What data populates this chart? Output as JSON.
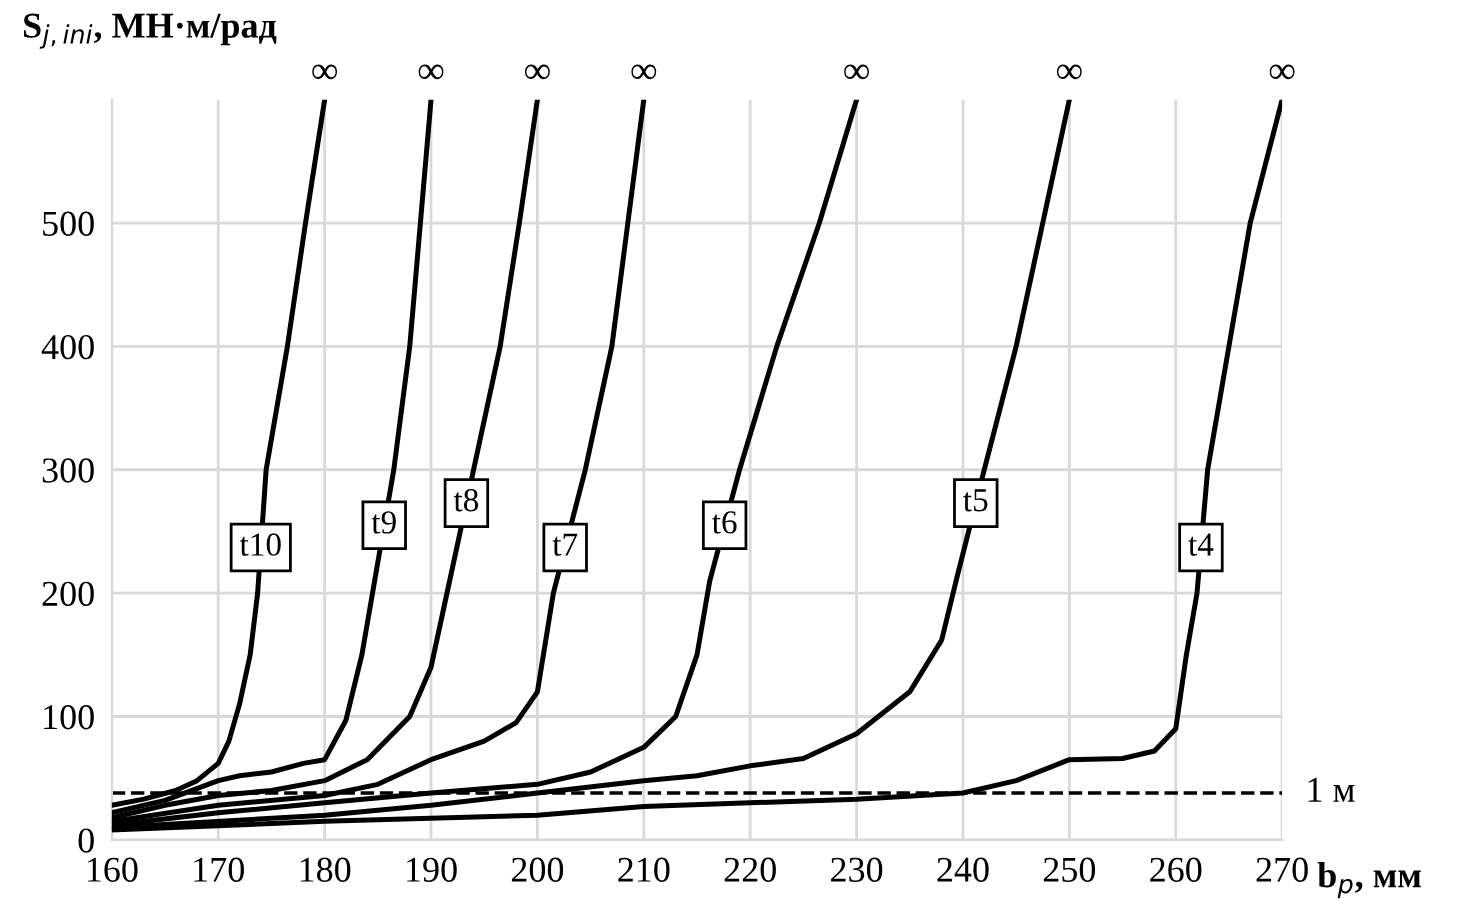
{
  "chart_data": {
    "type": "line",
    "xlabel": "b$_{p}$, мм",
    "ylabel": "S$_{j,ini}$, МН·м/рад",
    "xlim": [
      160,
      270
    ],
    "xticks": [
      160,
      170,
      180,
      190,
      200,
      210,
      220,
      230,
      240,
      250,
      260,
      270
    ],
    "ylim": [
      0,
      600
    ],
    "yticks": [
      0,
      100,
      200,
      300,
      400,
      500
    ],
    "grid": true,
    "marker": "none",
    "line_style": "solid",
    "series": [
      {
        "name": "t10",
        "color": "#000000",
        "x": [
          160,
          163,
          166,
          168,
          170,
          171,
          172,
          173,
          173.7,
          174.5,
          176.5,
          178.2,
          180
        ],
        "values": [
          28,
          33,
          40,
          48,
          62,
          80,
          110,
          150,
          200,
          300,
          400,
          500,
          600
        ]
      },
      {
        "name": "t9",
        "color": "#000000",
        "x": [
          160,
          165,
          170,
          172,
          175,
          178,
          180,
          182,
          183.5,
          184.5,
          186.5,
          188,
          189,
          190
        ],
        "values": [
          22,
          32,
          48,
          52,
          55,
          62,
          65,
          97,
          150,
          200,
          300,
          400,
          500,
          600
        ]
      },
      {
        "name": "t8",
        "color": "#000000",
        "x": [
          160,
          165,
          170,
          175,
          180,
          184,
          188,
          190,
          191.5,
          194,
          196.5,
          198.3,
          200
        ],
        "values": [
          18,
          28,
          36,
          40,
          48,
          65,
          100,
          140,
          200,
          300,
          400,
          500,
          600
        ]
      },
      {
        "name": "t7",
        "color": "#000000",
        "x": [
          160,
          170,
          180,
          185,
          190,
          195,
          198,
          200,
          201.5,
          204.5,
          207,
          208.5,
          210
        ],
        "values": [
          15,
          28,
          36,
          45,
          65,
          80,
          95,
          120,
          200,
          300,
          400,
          500,
          600
        ]
      },
      {
        "name": "t6",
        "color": "#000000",
        "x": [
          160,
          170,
          180,
          190,
          200,
          205,
          210,
          213,
          215,
          216.2,
          219,
          222.5,
          226.5,
          230
        ],
        "values": [
          12,
          22,
          30,
          38,
          45,
          55,
          75,
          100,
          150,
          210,
          300,
          400,
          500,
          600
        ]
      },
      {
        "name": "t5",
        "color": "#000000",
        "x": [
          160,
          180,
          190,
          200,
          210,
          215,
          220,
          225,
          230,
          235,
          238,
          239.5,
          242,
          245,
          247.5,
          250
        ],
        "values": [
          10,
          20,
          28,
          38,
          48,
          52,
          60,
          66,
          86,
          120,
          162,
          215,
          300,
          400,
          500,
          600
        ]
      },
      {
        "name": "t4",
        "color": "#000000",
        "x": [
          160,
          180,
          200,
          210,
          220,
          230,
          240,
          245,
          250,
          255,
          258,
          260,
          261,
          262,
          263,
          265,
          267,
          270
        ],
        "values": [
          8,
          15,
          20,
          27,
          30,
          33,
          38,
          48,
          65,
          66,
          72,
          90,
          150,
          200,
          300,
          400,
          500,
          600
        ]
      }
    ],
    "ref_lines": [
      {
        "axis": "y",
        "value": 38,
        "label": "1 м",
        "line_style": "dashed",
        "color": "#000000"
      }
    ],
    "annotations": [
      {
        "text": "∞",
        "x": 180,
        "y": 600
      },
      {
        "text": "∞",
        "x": 190,
        "y": 600
      },
      {
        "text": "∞",
        "x": 200,
        "y": 600
      },
      {
        "text": "∞",
        "x": 210,
        "y": 600
      },
      {
        "text": "∞",
        "x": 230,
        "y": 600
      },
      {
        "text": "∞",
        "x": 250,
        "y": 600
      },
      {
        "text": "∞",
        "x": 270,
        "y": 600
      }
    ]
  }
}
